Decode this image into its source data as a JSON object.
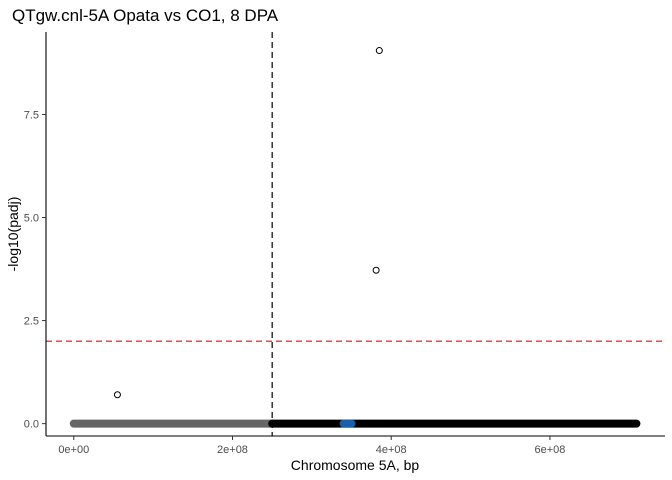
{
  "chart_data": {
    "type": "scatter",
    "title": "QTgw.cnl-5A Opata vs CO1, 8 DPA",
    "xlabel": "Chromosome 5A, bp",
    "ylabel": "-log10(padj)",
    "xlim": [
      -35000000,
      745000000
    ],
    "ylim": [
      -0.3,
      9.5
    ],
    "x_ticks": [
      0,
      200000000,
      400000000,
      600000000
    ],
    "x_tick_labels": [
      "0e+00",
      "2e+08",
      "4e+08",
      "6e+08"
    ],
    "y_ticks": [
      0.0,
      2.5,
      5.0,
      7.5
    ],
    "y_tick_labels": [
      "0.0",
      "2.5",
      "5.0",
      "7.5"
    ],
    "grid": false,
    "threshold_lines": {
      "horizontal_y": 2.0,
      "horizontal_color": "#ff0000",
      "vertical_x": 250000000,
      "vertical_color": "#000000"
    },
    "series": [
      {
        "color": "#666666",
        "x_range": [
          0,
          250000000
        ],
        "baseline_y": 0,
        "points": [
          {
            "x": 55000000,
            "y": 0.7
          }
        ]
      },
      {
        "color": "#000000",
        "x_range": [
          250000000,
          709000000
        ],
        "baseline_y": 0,
        "points": [
          {
            "x": 385000000,
            "y": 9.05
          },
          {
            "x": 381000000,
            "y": 3.72
          }
        ]
      },
      {
        "color": "#1a5fa8",
        "x_range": [
          340000000,
          350000000
        ],
        "baseline_y": 0,
        "points": []
      }
    ]
  }
}
